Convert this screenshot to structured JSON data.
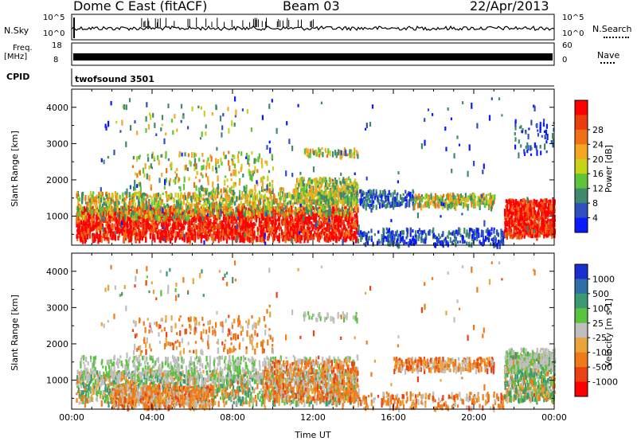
{
  "header": {
    "title": "Dome C East (fitACF)",
    "beam": "Beam 03",
    "date": "22/Apr/2013"
  },
  "sky_panel": {
    "left_label": "N.Sky",
    "right_label": "N.Search",
    "left_ticks": [
      "10^5",
      "10^0"
    ],
    "right_ticks": [
      "10^5",
      "10^0"
    ]
  },
  "freq_panel": {
    "left_label_1": "Freq.",
    "left_label_2": "[MHz]",
    "right_label": "Nave",
    "left_ticks": [
      "18",
      "8"
    ],
    "right_ticks": [
      "60",
      "0"
    ]
  },
  "cpid": {
    "label": "CPID",
    "value": "twofsound 3501"
  },
  "chart_data": [
    {
      "type": "heatmap",
      "name": "power",
      "xlabel": "",
      "ylabel": "Slant Range [km]",
      "x_ticks": [
        "00:00",
        "04:00",
        "08:00",
        "12:00",
        "16:00",
        "20:00",
        "00:00"
      ],
      "y_ticks": [
        1000,
        2000,
        3000,
        4000
      ],
      "ylim": [
        200,
        4500
      ],
      "colorbar": {
        "label": "Power [dB]",
        "ticks": [
          "4",
          "8",
          "12",
          "16",
          "20",
          "24",
          "28"
        ],
        "colors": [
          "#0a1aff",
          "#2f4fbf",
          "#3d8a6e",
          "#5ec43a",
          "#c9d21a",
          "#f5a623",
          "#f07016",
          "#ea3d10",
          "#ff0000"
        ]
      }
    },
    {
      "type": "heatmap",
      "name": "velocity",
      "xlabel": "Time UT",
      "ylabel": "Slant Range [km]",
      "x_ticks": [
        "00:00",
        "04:00",
        "08:00",
        "12:00",
        "16:00",
        "20:00",
        "00:00"
      ],
      "y_ticks": [
        1000,
        2000,
        3000,
        4000
      ],
      "ylim": [
        200,
        4500
      ],
      "colorbar": {
        "label": "Velocity [m s-1]",
        "ticks": [
          "1000",
          "500",
          "100",
          "25",
          "-25",
          "-100",
          "-500",
          "-1000"
        ],
        "colors": [
          "#1a2fd0",
          "#2e6fa8",
          "#3b9a72",
          "#5bc43e",
          "#bfbfbf",
          "#e8a53a",
          "#f07a1a",
          "#ea4214",
          "#ff0000"
        ]
      }
    }
  ]
}
